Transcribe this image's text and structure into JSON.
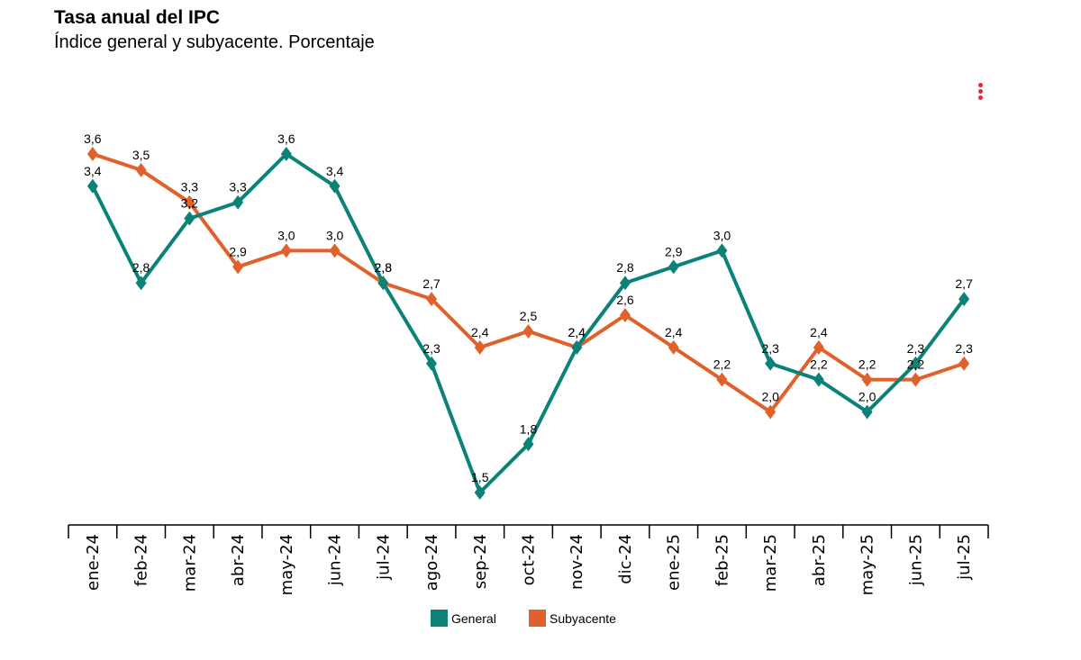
{
  "header": {
    "title": "Tasa anual del IPC",
    "subtitle": "Índice general y subyacente. Porcentaje"
  },
  "menu": {
    "icon": "kebab-menu-icon",
    "color": "#e0293a"
  },
  "legend": [
    {
      "name": "General",
      "color": "#0a8277"
    },
    {
      "name": "Subyacente",
      "color": "#e0612b"
    }
  ],
  "chart_data": {
    "type": "line",
    "title": "Tasa anual del IPC",
    "subtitle": "Índice general y subyacente. Porcentaje",
    "xlabel": "",
    "ylabel": "",
    "categories": [
      "ene-24",
      "feb-24",
      "mar-24",
      "abr-24",
      "may-24",
      "jun-24",
      "jul-24",
      "ago-24",
      "sep-24",
      "oct-24",
      "nov-24",
      "dic-24",
      "ene-25",
      "feb-25",
      "mar-25",
      "abr-25",
      "may-25",
      "jun-25",
      "jul-25"
    ],
    "series": [
      {
        "name": "General",
        "color": "#0a8277",
        "values": [
          3.4,
          2.8,
          3.2,
          3.3,
          3.6,
          3.4,
          2.8,
          2.3,
          1.5,
          1.8,
          2.4,
          2.8,
          2.9,
          3.0,
          2.3,
          2.2,
          2.0,
          2.3,
          2.7
        ],
        "labels": [
          "3,4",
          "2,8",
          "3,2",
          "3,3",
          "3,6",
          "3,4",
          "2,8",
          "2,3",
          "1,5",
          "1,8",
          "2,4",
          "2,8",
          "2,9",
          "3,0",
          "2,3",
          "2,2",
          "2,0",
          "2,3",
          "2,7"
        ]
      },
      {
        "name": "Subyacente",
        "color": "#e0612b",
        "values": [
          3.6,
          3.5,
          3.3,
          2.9,
          3.0,
          3.0,
          2.8,
          2.7,
          2.4,
          2.5,
          2.4,
          2.6,
          2.4,
          2.2,
          2.0,
          2.4,
          2.2,
          2.2,
          2.3
        ],
        "labels": [
          "3,6",
          "3,5",
          "3,3",
          "2,9",
          "3,0",
          "3,0",
          "2,8",
          "2,7",
          "2,4",
          "2,5",
          "2,4",
          "2,6",
          "2,4",
          "2,2",
          "2,0",
          "2,4",
          "2,2",
          "2,2",
          "2,3"
        ]
      }
    ],
    "ylim": [
      1.3,
      3.8
    ],
    "grid": false,
    "legend_position": "bottom-center"
  }
}
